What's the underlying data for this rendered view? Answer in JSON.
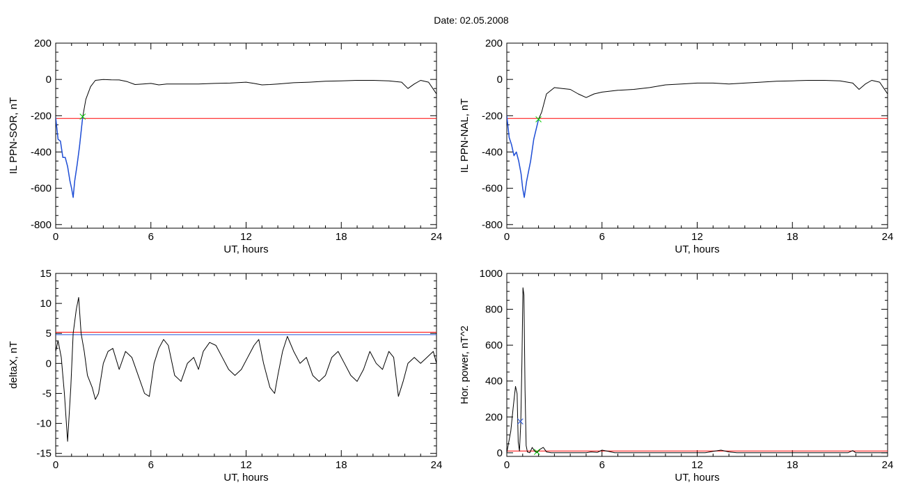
{
  "figure": {
    "title": "Date:  02.05.2008"
  },
  "chart_data": [
    {
      "type": "line",
      "xlabel": "UT, hours",
      "ylabel": "IL PPN-SOR, nT",
      "xlim": [
        0,
        24
      ],
      "ylim": [
        -820,
        200
      ],
      "xticks": [
        0,
        6,
        12,
        18,
        24
      ],
      "yticks": [
        -800,
        -600,
        -400,
        -200,
        0,
        200
      ],
      "threshold": {
        "value": -215,
        "color": "#ff0000"
      },
      "marker": {
        "x": 1.7,
        "y": -205,
        "color": "#00cc00"
      },
      "series": [
        {
          "color": "#000000",
          "points": [
            [
              0,
              -210
            ],
            [
              0.15,
              -330
            ],
            [
              0.3,
              -340
            ],
            [
              0.45,
              -430
            ],
            [
              0.6,
              -430
            ],
            [
              0.75,
              -480
            ],
            [
              0.9,
              -560
            ],
            [
              1.0,
              -600
            ],
            [
              1.1,
              -650
            ],
            [
              1.2,
              -560
            ],
            [
              1.35,
              -470
            ],
            [
              1.5,
              -370
            ],
            [
              1.7,
              -210
            ],
            [
              1.9,
              -110
            ],
            [
              2.2,
              -40
            ],
            [
              2.5,
              -5
            ],
            [
              3.0,
              0
            ],
            [
              3.5,
              -2
            ],
            [
              4.0,
              -3
            ],
            [
              4.5,
              -12
            ],
            [
              5.0,
              -28
            ],
            [
              5.5,
              -25
            ],
            [
              6.0,
              -22
            ],
            [
              6.5,
              -30
            ],
            [
              7.0,
              -25
            ],
            [
              8.0,
              -25
            ],
            [
              9.0,
              -25
            ],
            [
              10.0,
              -22
            ],
            [
              11.0,
              -20
            ],
            [
              12.0,
              -15
            ],
            [
              12.5,
              -22
            ],
            [
              13.0,
              -30
            ],
            [
              13.5,
              -28
            ],
            [
              14.0,
              -25
            ],
            [
              15.0,
              -18
            ],
            [
              16.0,
              -15
            ],
            [
              17.0,
              -10
            ],
            [
              18.0,
              -8
            ],
            [
              19.0,
              -5
            ],
            [
              20.0,
              -5
            ],
            [
              21.0,
              -8
            ],
            [
              21.8,
              -15
            ],
            [
              22.2,
              -50
            ],
            [
              22.6,
              -25
            ],
            [
              23.0,
              -5
            ],
            [
              23.5,
              -15
            ],
            [
              24.0,
              -80
            ]
          ]
        },
        {
          "color": "#1f4fd8",
          "points": [
            [
              0,
              -210
            ],
            [
              0.15,
              -330
            ],
            [
              0.3,
              -340
            ],
            [
              0.45,
              -430
            ],
            [
              0.6,
              -430
            ],
            [
              0.75,
              -480
            ],
            [
              0.9,
              -560
            ],
            [
              1.0,
              -600
            ],
            [
              1.1,
              -650
            ],
            [
              1.2,
              -560
            ],
            [
              1.35,
              -470
            ],
            [
              1.5,
              -370
            ],
            [
              1.7,
              -210
            ]
          ]
        }
      ]
    },
    {
      "type": "line",
      "xlabel": "UT, hours",
      "ylabel": "IL PPN-NAL, nT",
      "xlim": [
        0,
        24
      ],
      "ylim": [
        -820,
        200
      ],
      "xticks": [
        0,
        6,
        12,
        18,
        24
      ],
      "yticks": [
        -800,
        -600,
        -400,
        -200,
        0,
        200
      ],
      "threshold": {
        "value": -215,
        "color": "#ff0000"
      },
      "marker": {
        "x": 2.0,
        "y": -220,
        "color": "#00cc00"
      },
      "series": [
        {
          "color": "#000000",
          "points": [
            [
              0,
              -200
            ],
            [
              0.15,
              -320
            ],
            [
              0.3,
              -360
            ],
            [
              0.45,
              -420
            ],
            [
              0.6,
              -400
            ],
            [
              0.75,
              -450
            ],
            [
              0.9,
              -520
            ],
            [
              1.0,
              -600
            ],
            [
              1.1,
              -650
            ],
            [
              1.25,
              -560
            ],
            [
              1.5,
              -450
            ],
            [
              1.7,
              -330
            ],
            [
              2.0,
              -220
            ],
            [
              2.2,
              -180
            ],
            [
              2.5,
              -80
            ],
            [
              3.0,
              -45
            ],
            [
              3.5,
              -50
            ],
            [
              4.0,
              -55
            ],
            [
              4.5,
              -80
            ],
            [
              5.0,
              -100
            ],
            [
              5.5,
              -80
            ],
            [
              6.0,
              -70
            ],
            [
              7.0,
              -60
            ],
            [
              8.0,
              -55
            ],
            [
              9.0,
              -45
            ],
            [
              10.0,
              -30
            ],
            [
              11.0,
              -25
            ],
            [
              12.0,
              -20
            ],
            [
              13.0,
              -20
            ],
            [
              14.0,
              -25
            ],
            [
              15.0,
              -20
            ],
            [
              16.0,
              -15
            ],
            [
              17.0,
              -10
            ],
            [
              18.0,
              -8
            ],
            [
              19.0,
              -5
            ],
            [
              20.0,
              -5
            ],
            [
              21.0,
              -8
            ],
            [
              21.8,
              -20
            ],
            [
              22.2,
              -55
            ],
            [
              22.6,
              -25
            ],
            [
              23.0,
              -5
            ],
            [
              23.5,
              -15
            ],
            [
              24.0,
              -80
            ]
          ]
        },
        {
          "color": "#1f4fd8",
          "points": [
            [
              0,
              -200
            ],
            [
              0.15,
              -320
            ],
            [
              0.3,
              -360
            ],
            [
              0.45,
              -420
            ],
            [
              0.6,
              -400
            ],
            [
              0.75,
              -450
            ],
            [
              0.9,
              -520
            ],
            [
              1.0,
              -600
            ],
            [
              1.1,
              -650
            ],
            [
              1.25,
              -560
            ],
            [
              1.5,
              -450
            ],
            [
              1.7,
              -330
            ],
            [
              2.0,
              -220
            ]
          ]
        }
      ]
    },
    {
      "type": "line",
      "xlabel": "UT, hours",
      "ylabel": "deltaX, nT",
      "xlim": [
        0,
        24
      ],
      "ylim": [
        -15.5,
        15
      ],
      "xticks": [
        0,
        6,
        12,
        18,
        24
      ],
      "yticks": [
        -15,
        -10,
        -5,
        0,
        5,
        10,
        15
      ],
      "threshold": {
        "value": 5.2,
        "color": "#ff0000"
      },
      "threshold2": {
        "value": 4.8,
        "color": "#1f4fd8"
      },
      "series": [
        {
          "color": "#000000",
          "points": [
            [
              0,
              2
            ],
            [
              0.15,
              3.8
            ],
            [
              0.35,
              1
            ],
            [
              0.55,
              -5
            ],
            [
              0.75,
              -13
            ],
            [
              0.95,
              -4
            ],
            [
              1.1,
              5
            ],
            [
              1.3,
              9
            ],
            [
              1.45,
              11
            ],
            [
              1.6,
              5
            ],
            [
              1.8,
              2
            ],
            [
              2.0,
              -2
            ],
            [
              2.3,
              -4
            ],
            [
              2.5,
              -6
            ],
            [
              2.7,
              -5
            ],
            [
              3.0,
              0
            ],
            [
              3.3,
              2
            ],
            [
              3.6,
              2.5
            ],
            [
              4.0,
              -1
            ],
            [
              4.4,
              2
            ],
            [
              4.8,
              1
            ],
            [
              5.2,
              -2
            ],
            [
              5.6,
              -5
            ],
            [
              5.9,
              -5.5
            ],
            [
              6.2,
              0
            ],
            [
              6.5,
              2.5
            ],
            [
              6.8,
              4
            ],
            [
              7.1,
              3
            ],
            [
              7.5,
              -2
            ],
            [
              7.9,
              -3
            ],
            [
              8.3,
              0
            ],
            [
              8.7,
              1
            ],
            [
              9.0,
              -1
            ],
            [
              9.3,
              2
            ],
            [
              9.7,
              3.5
            ],
            [
              10.1,
              3
            ],
            [
              10.5,
              1
            ],
            [
              10.9,
              -1
            ],
            [
              11.3,
              -2
            ],
            [
              11.7,
              -1
            ],
            [
              12.1,
              1
            ],
            [
              12.5,
              3
            ],
            [
              12.8,
              4
            ],
            [
              13.1,
              0
            ],
            [
              13.5,
              -4
            ],
            [
              13.8,
              -5
            ],
            [
              14.0,
              -2
            ],
            [
              14.3,
              2
            ],
            [
              14.6,
              4.5
            ],
            [
              15.0,
              2
            ],
            [
              15.4,
              0
            ],
            [
              15.8,
              1
            ],
            [
              16.2,
              -2
            ],
            [
              16.6,
              -3
            ],
            [
              17.0,
              -2
            ],
            [
              17.4,
              1
            ],
            [
              17.8,
              2
            ],
            [
              18.2,
              0
            ],
            [
              18.6,
              -2
            ],
            [
              19.0,
              -3
            ],
            [
              19.4,
              -1
            ],
            [
              19.8,
              2
            ],
            [
              20.2,
              0
            ],
            [
              20.6,
              -1
            ],
            [
              21.0,
              2
            ],
            [
              21.3,
              1
            ],
            [
              21.6,
              -5.5
            ],
            [
              21.9,
              -3
            ],
            [
              22.2,
              0
            ],
            [
              22.6,
              1
            ],
            [
              23.0,
              0
            ],
            [
              23.4,
              1
            ],
            [
              23.8,
              2
            ],
            [
              24.0,
              0
            ]
          ]
        }
      ]
    },
    {
      "type": "line",
      "xlabel": "UT, hours",
      "ylabel": "Hor. power, nT^2",
      "xlim": [
        0,
        24
      ],
      "ylim": [
        -20,
        1000
      ],
      "xticks": [
        0,
        6,
        12,
        18,
        24
      ],
      "yticks": [
        0,
        200,
        400,
        600,
        800,
        1000
      ],
      "threshold": {
        "value": 10,
        "color": "#ff0000"
      },
      "marker": {
        "x": 0.85,
        "y": 175,
        "color": "#1f4fd8"
      },
      "marker2": {
        "x": 1.9,
        "y": 5,
        "color": "#00cc00"
      },
      "series": [
        {
          "color": "#000000",
          "points": [
            [
              0,
              0
            ],
            [
              0.1,
              50
            ],
            [
              0.25,
              120
            ],
            [
              0.4,
              250
            ],
            [
              0.55,
              370
            ],
            [
              0.65,
              330
            ],
            [
              0.72,
              60
            ],
            [
              0.8,
              10
            ],
            [
              0.88,
              170
            ],
            [
              0.95,
              500
            ],
            [
              1.02,
              920
            ],
            [
              1.08,
              880
            ],
            [
              1.15,
              350
            ],
            [
              1.22,
              40
            ],
            [
              1.3,
              5
            ],
            [
              1.45,
              0
            ],
            [
              1.6,
              30
            ],
            [
              1.75,
              10
            ],
            [
              1.9,
              0
            ],
            [
              2.1,
              20
            ],
            [
              2.3,
              30
            ],
            [
              2.5,
              5
            ],
            [
              2.8,
              0
            ],
            [
              3.5,
              0
            ],
            [
              4.5,
              0
            ],
            [
              5.0,
              0
            ],
            [
              5.3,
              5
            ],
            [
              5.7,
              2
            ],
            [
              6.0,
              15
            ],
            [
              6.4,
              8
            ],
            [
              6.8,
              0
            ],
            [
              7.5,
              0
            ],
            [
              8.5,
              0
            ],
            [
              9.5,
              0
            ],
            [
              10.5,
              0
            ],
            [
              11.5,
              0
            ],
            [
              12.5,
              0
            ],
            [
              13.0,
              8
            ],
            [
              13.5,
              15
            ],
            [
              14.0,
              5
            ],
            [
              14.5,
              0
            ],
            [
              15.5,
              0
            ],
            [
              16.5,
              0
            ],
            [
              17.5,
              0
            ],
            [
              18.5,
              0
            ],
            [
              19.5,
              0
            ],
            [
              20.5,
              0
            ],
            [
              21.5,
              0
            ],
            [
              21.8,
              12
            ],
            [
              22.0,
              0
            ],
            [
              22.5,
              0
            ],
            [
              23.5,
              0
            ],
            [
              24.0,
              0
            ]
          ]
        }
      ]
    }
  ]
}
